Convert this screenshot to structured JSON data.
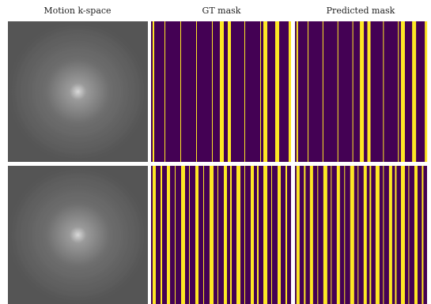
{
  "figure": {
    "column_titles": [
      "Motion k-space",
      "GT mask",
      "Predicted mask"
    ]
  }
}
